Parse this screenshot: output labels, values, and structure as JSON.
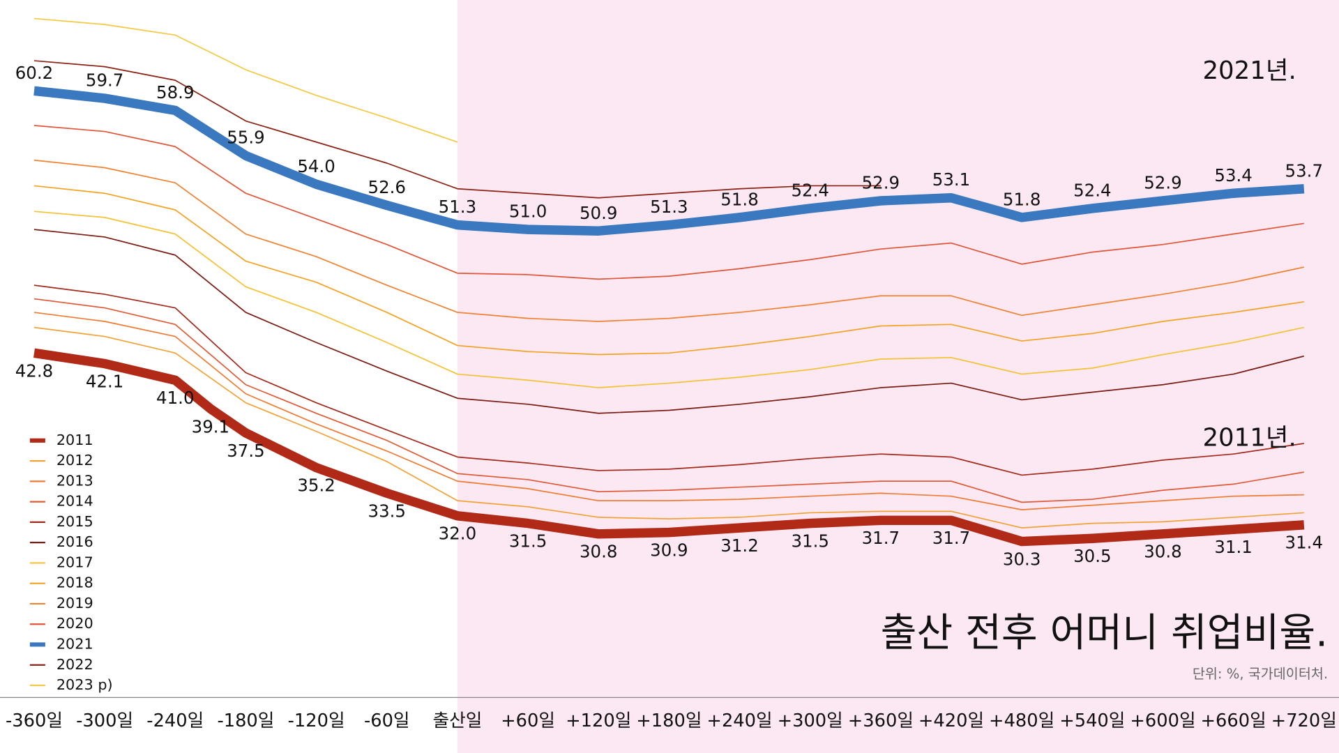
{
  "chart_data": {
    "type": "line",
    "title": "출산 전후 어머니 취업비율.",
    "subtitle": "단위: %, 국가데이터처.",
    "annotations": [
      "2021년.",
      "2011년."
    ],
    "x": [
      -360,
      -300,
      -240,
      -180,
      -120,
      -60,
      0,
      60,
      120,
      180,
      240,
      300,
      360,
      420,
      480,
      540,
      600,
      660,
      720
    ],
    "xlim": [
      -360,
      720
    ],
    "xticks": [
      {
        "value": -360,
        "label": "-360일"
      },
      {
        "value": -300,
        "label": "-300일"
      },
      {
        "value": -240,
        "label": "-240일"
      },
      {
        "value": -180,
        "label": "-180일"
      },
      {
        "value": -120,
        "label": "-120일"
      },
      {
        "value": -60,
        "label": "-60일"
      },
      {
        "value": 0,
        "label": "출산일"
      },
      {
        "value": 60,
        "label": "+60일"
      },
      {
        "value": 120,
        "label": "+120일"
      },
      {
        "value": 180,
        "label": "+180일"
      },
      {
        "value": 240,
        "label": "+240일"
      },
      {
        "value": 300,
        "label": "+300일"
      },
      {
        "value": 360,
        "label": "+360일"
      },
      {
        "value": 420,
        "label": "+420일"
      },
      {
        "value": 480,
        "label": "+480일"
      },
      {
        "value": 540,
        "label": "+540일"
      },
      {
        "value": 600,
        "label": "+600일"
      },
      {
        "value": 660,
        "label": "+660일"
      },
      {
        "value": 720,
        "label": "+720일"
      }
    ],
    "ylim": [
      20,
      66
    ],
    "shade_start": 0,
    "legend": "lower left",
    "series": [
      {
        "name": "2011",
        "color": "#b02a17",
        "label_position": "below",
        "x": [
          -360,
          -300,
          -240,
          -210,
          -180,
          -120,
          -60,
          0,
          60,
          120,
          180,
          240,
          300,
          360,
          420,
          480,
          540,
          600,
          660,
          720
        ],
        "values": [
          42.8,
          42.1,
          41.0,
          39.1,
          37.5,
          35.2,
          33.5,
          32.0,
          31.5,
          30.8,
          30.9,
          31.2,
          31.5,
          31.7,
          31.7,
          30.3,
          30.5,
          30.8,
          31.1,
          31.4
        ],
        "value_labels": [
          "42.8",
          "42.1",
          "41.0",
          "39.1",
          "37.5",
          "35.2",
          "33.5",
          "32.0",
          "31.5",
          "30.8",
          "30.9",
          "31.2",
          "31.5",
          "31.7",
          "31.7",
          "30.3",
          "30.5",
          "30.8",
          "31.1",
          "31.4"
        ]
      },
      {
        "name": "2012",
        "color": "#f2a235",
        "values": [
          44.5,
          43.9,
          42.8,
          39.5,
          37.6,
          35.6,
          33.0,
          32.6,
          31.9,
          31.8,
          31.9,
          32.2,
          32.3,
          32.3,
          31.2,
          31.5,
          31.6,
          31.9,
          32.2
        ]
      },
      {
        "name": "2013",
        "color": "#f07a32",
        "values": [
          45.5,
          44.9,
          43.9,
          40.1,
          38.1,
          36.3,
          34.3,
          33.8,
          33.0,
          33.0,
          33.1,
          33.3,
          33.5,
          33.3,
          32.4,
          32.7,
          33.0,
          33.3,
          33.4
        ]
      },
      {
        "name": "2014",
        "color": "#e05a36",
        "values": [
          46.4,
          45.8,
          44.7,
          40.7,
          38.8,
          37.0,
          34.8,
          34.4,
          33.6,
          33.7,
          33.9,
          34.1,
          34.3,
          34.3,
          32.9,
          33.1,
          33.7,
          34.1,
          34.9
        ]
      },
      {
        "name": "2015",
        "color": "#a3291a",
        "values": [
          47.3,
          46.7,
          45.8,
          41.5,
          39.5,
          37.7,
          35.9,
          35.5,
          35.0,
          35.1,
          35.4,
          35.8,
          36.1,
          35.9,
          34.7,
          35.1,
          35.7,
          36.1,
          36.8
        ]
      },
      {
        "name": "2016",
        "color": "#7a1a10",
        "values": [
          51.0,
          50.5,
          49.3,
          45.5,
          43.5,
          41.6,
          39.8,
          39.4,
          38.8,
          39.0,
          39.4,
          39.9,
          40.5,
          40.8,
          39.7,
          40.2,
          40.7,
          41.4,
          42.6
        ]
      },
      {
        "name": "2017",
        "color": "#f4c232",
        "values": [
          52.2,
          51.8,
          50.7,
          47.2,
          45.5,
          43.5,
          41.4,
          41.0,
          40.5,
          40.8,
          41.2,
          41.7,
          42.4,
          42.5,
          41.4,
          41.8,
          42.7,
          43.5,
          44.5
        ]
      },
      {
        "name": "2018",
        "color": "#f4a222",
        "values": [
          53.9,
          53.4,
          52.3,
          48.9,
          47.5,
          45.5,
          43.3,
          42.9,
          42.7,
          42.8,
          43.3,
          43.9,
          44.6,
          44.7,
          43.6,
          44.1,
          44.9,
          45.5,
          46.2
        ]
      },
      {
        "name": "2019",
        "color": "#f08232",
        "values": [
          55.6,
          55.1,
          54.1,
          50.7,
          49.2,
          47.3,
          45.5,
          45.1,
          44.9,
          45.1,
          45.5,
          46.0,
          46.6,
          46.6,
          45.3,
          46.0,
          46.7,
          47.5,
          48.5
        ]
      },
      {
        "name": "2020",
        "color": "#e05536",
        "values": [
          57.9,
          57.5,
          56.5,
          53.4,
          51.7,
          50.0,
          48.1,
          48.0,
          47.7,
          47.9,
          48.4,
          49.0,
          49.7,
          50.1,
          48.7,
          49.5,
          50.0,
          50.7,
          51.4
        ]
      },
      {
        "name": "2021",
        "color": "#3a78c0",
        "label_position": "above",
        "values": [
          60.2,
          59.7,
          58.9,
          55.9,
          54.0,
          52.6,
          51.3,
          51.0,
          50.9,
          51.3,
          51.8,
          52.4,
          52.9,
          53.1,
          51.8,
          52.4,
          52.9,
          53.4,
          53.7
        ],
        "value_labels": [
          "60.2",
          "59.7",
          "58.9",
          "55.9",
          "54.0",
          "52.6",
          "51.3",
          "51.0",
          "50.9",
          "51.3",
          "51.8",
          "52.4",
          "52.9",
          "53.1",
          "51.8",
          "52.4",
          "52.9",
          "53.4",
          "53.7"
        ]
      },
      {
        "name": "2022",
        "color": "#8a2112",
        "values": [
          62.2,
          61.8,
          60.9,
          58.2,
          56.8,
          55.4,
          53.7,
          53.4,
          53.1,
          53.4,
          53.7,
          53.9,
          53.9,
          null,
          null,
          null,
          null,
          null,
          null
        ]
      },
      {
        "name": "2023 p)",
        "color": "#f5c842",
        "values": [
          65.0,
          64.6,
          63.9,
          61.6,
          59.9,
          58.4,
          56.8,
          null,
          null,
          null,
          null,
          null,
          null,
          null,
          null,
          null,
          null,
          null,
          null
        ]
      }
    ]
  }
}
